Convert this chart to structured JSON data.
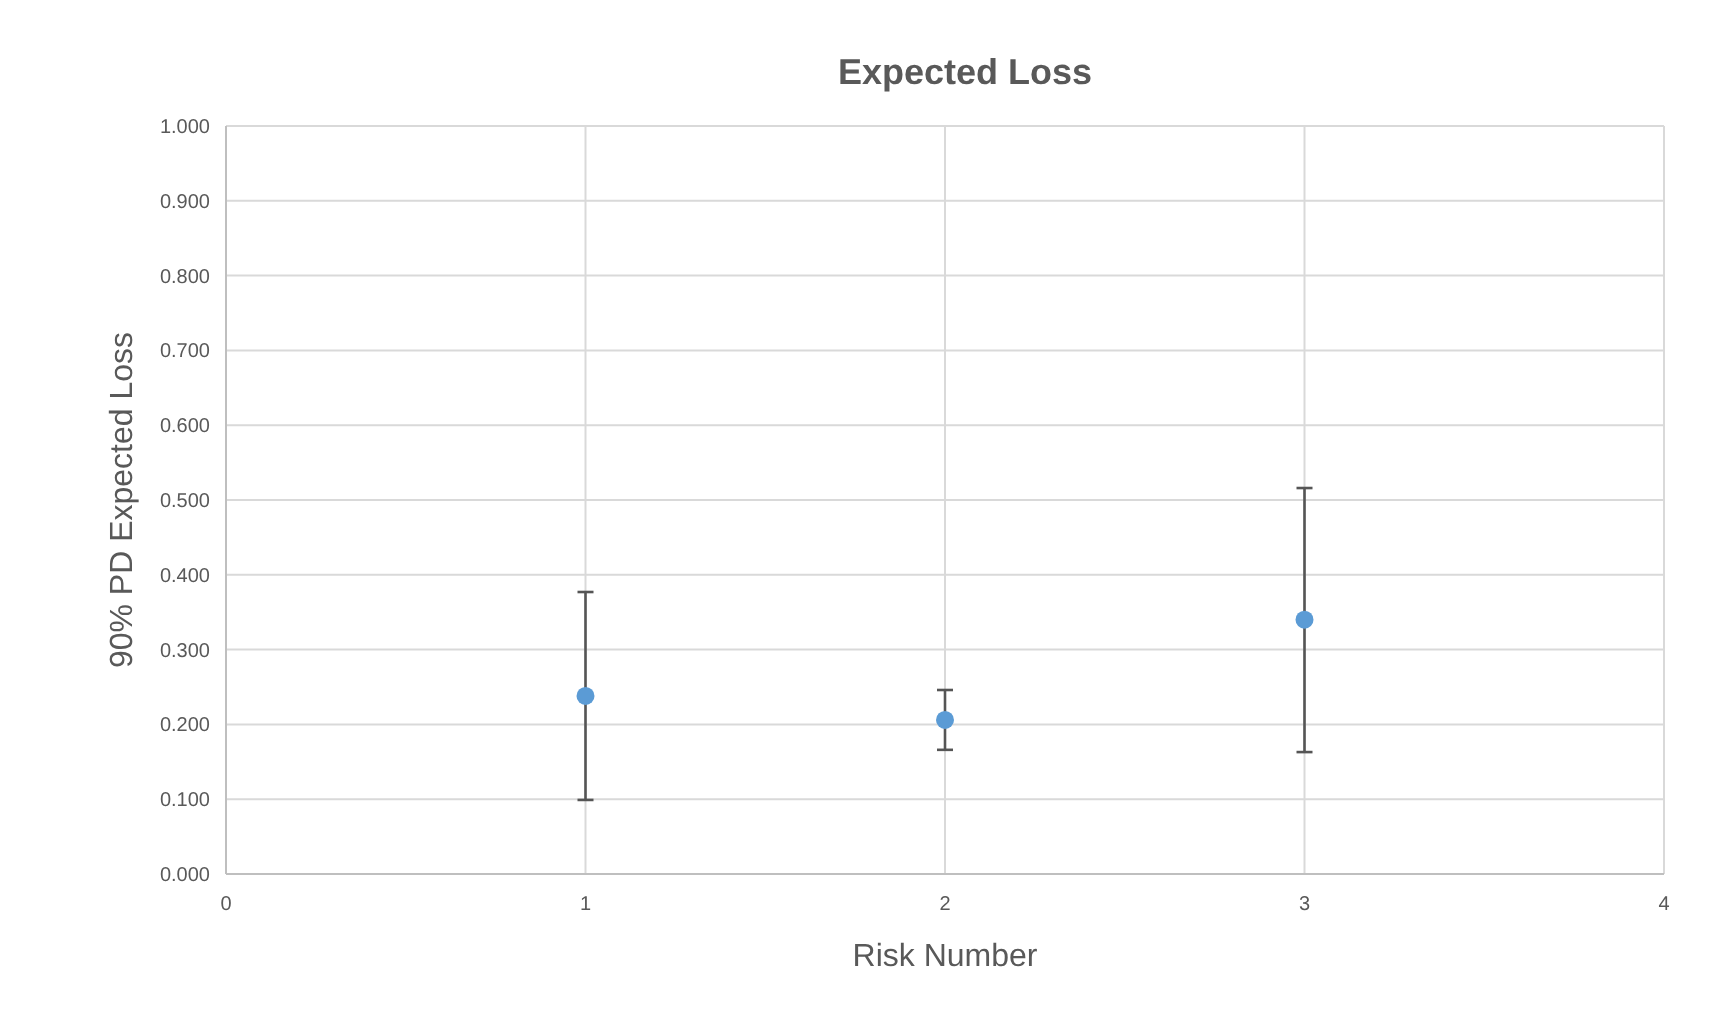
{
  "chart_data": {
    "type": "scatter",
    "title": "Expected Loss",
    "xlabel": "Risk Number",
    "ylabel": "90% PD Expected Loss",
    "x": [
      1,
      2,
      3
    ],
    "series": [
      {
        "color": "#5b9bd5",
        "values": [
          0.238,
          0.206,
          0.34
        ],
        "errors": [
          [
            0.099,
            0.377
          ],
          [
            0.166,
            0.246
          ],
          [
            0.163,
            0.516
          ]
        ]
      }
    ],
    "xlim": [
      0,
      4
    ],
    "xticks": [
      0,
      1,
      2,
      3,
      4
    ],
    "ylim": [
      0,
      1
    ],
    "yticks": [
      {
        "value": 0,
        "label": "0.000"
      },
      {
        "value": 0.1,
        "label": "0.100"
      },
      {
        "value": 0.2,
        "label": "0.200"
      },
      {
        "value": 0.3,
        "label": "0.300"
      },
      {
        "value": 0.4,
        "label": "0.400"
      },
      {
        "value": 0.5,
        "label": "0.500"
      },
      {
        "value": 0.6,
        "label": "0.600"
      },
      {
        "value": 0.7,
        "label": "0.700"
      },
      {
        "value": 0.8,
        "label": "0.800"
      },
      {
        "value": 0.9,
        "label": "0.900"
      },
      {
        "value": 1,
        "label": "1.000"
      }
    ],
    "grid": true,
    "marker": "circle"
  }
}
